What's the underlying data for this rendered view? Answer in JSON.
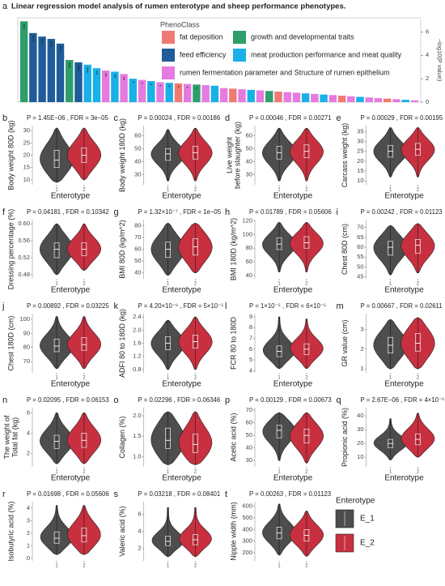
{
  "panel_label": "a",
  "figure_title": "Linear regression model analysis of rumen enterotype and sheep performance phenotypes.",
  "legend_title": "Enterotype",
  "chart_data": [
    {
      "type": "bar",
      "y_label": "−log10(P value)",
      "ylim": [
        0,
        7.2
      ],
      "yticks": [
        0,
        2,
        4,
        6
      ],
      "values": [
        6.9,
        5.9,
        5.6,
        5.4,
        5.0,
        3.6,
        3.4,
        3.2,
        2.9,
        2.7,
        2.6,
        2.4,
        2.0,
        1.9,
        1.8,
        1.7,
        1.65,
        1.6,
        1.55,
        1.5,
        1.45,
        1.4,
        1.2,
        1.15,
        1.1,
        1.05,
        1.0,
        0.95,
        0.9,
        0.85,
        0.8,
        0.75,
        0.7,
        0.65,
        0.6,
        0.55,
        0.5,
        0.45,
        0.4,
        0.35,
        0.3,
        0.25,
        0.2,
        0.15
      ],
      "colors": [
        "#2e9e6b",
        "#1f5c99",
        "#1f5c99",
        "#1f5c99",
        "#1f5c99",
        "#2e9e6b",
        "#1f5c99",
        "#1ab0e8",
        "#1ab0e8",
        "#e57be0",
        "#1ab0e8",
        "#e57be0",
        "#1ab0e8",
        "#e57be0",
        "#1ab0e8",
        "#e57be0",
        "#1ab0e8",
        "#f07a73",
        "#e57be0",
        "#2e9e6b",
        "#e57be0",
        "#1ab0e8",
        "#e57be0",
        "#f07a73",
        "#e57be0",
        "#1ab0e8",
        "#e57be0",
        "#2e9e6b",
        "#f07a73",
        "#e57be0",
        "#e57be0",
        "#1ab0e8",
        "#e57be0",
        "#1ab0e8",
        "#e57be0",
        "#f07a73",
        "#e57be0",
        "#1ab0e8",
        "#e57be0",
        "#e57be0",
        "#f07a73",
        "#e57be0",
        "#1ab0e8",
        "#e57be0"
      ],
      "annotations": [
        "***",
        "***",
        "***",
        "***",
        "***",
        "***",
        "***",
        "***",
        "**",
        "**",
        "**",
        "**",
        "*",
        "*",
        "*",
        "*",
        "*",
        "*",
        "*",
        "*",
        null,
        null,
        null,
        null,
        null,
        null,
        null,
        null,
        null,
        null,
        null,
        null,
        null,
        null,
        null,
        null,
        null,
        null,
        null,
        null,
        null,
        null,
        null,
        null
      ],
      "legend": {
        "title": "PhenoClass",
        "items": [
          {
            "name": "fat deposition",
            "color": "#f07a73"
          },
          {
            "name": "growth and developmental traits",
            "color": "#2e9e6b"
          },
          {
            "name": "feed efficiency",
            "color": "#1f5c99"
          },
          {
            "name": "meat production performance and meat quality",
            "color": "#1ab0e8"
          },
          {
            "name": "rumen fermentation parameter and Structure of rumen epithelium",
            "color": "#e57be0"
          }
        ]
      }
    },
    {
      "type": "violin",
      "label": "b",
      "stats": "P = 1.45E−06 , FDR = 3e−05",
      "y_label": "Body weight 80D (kg)",
      "x_label": "Enterotype",
      "categories": [
        "1",
        "2"
      ],
      "ylim": [
        8,
        32
      ],
      "yticks": [
        10,
        15,
        20,
        25,
        30
      ],
      "series": [
        {
          "name": "E_1",
          "color": "#4d4d4d",
          "values": [
            9,
            15,
            18,
            22,
            31
          ]
        },
        {
          "name": "E_2",
          "color": "#c8303f",
          "values": [
            10,
            17,
            20,
            23,
            31
          ]
        }
      ]
    },
    {
      "type": "violin",
      "label": "c",
      "stats": "P = 0.00024 , FDR = 0.00186",
      "y_label": "Body weight 180D (kg)",
      "x_label": "Enterotype",
      "categories": [
        "1",
        "2"
      ],
      "ylim": [
        22,
        68
      ],
      "yticks": [
        30,
        40,
        50,
        60
      ],
      "series": [
        {
          "name": "E_1",
          "color": "#4d4d4d",
          "values": [
            25,
            41,
            46,
            50,
            65
          ]
        },
        {
          "name": "E_2",
          "color": "#c8303f",
          "values": [
            25,
            42,
            47,
            52,
            66
          ]
        }
      ]
    },
    {
      "type": "violin",
      "label": "d",
      "stats": "P = 0.00046 , FDR = 0.00271",
      "y_label": [
        "Live weight",
        "before slaughter (kg)"
      ],
      "x_label": "Enterotype",
      "categories": [
        "1",
        "2"
      ],
      "ylim": [
        22,
        68
      ],
      "yticks": [
        30,
        40,
        50,
        60
      ],
      "series": [
        {
          "name": "E_1",
          "color": "#4d4d4d",
          "values": [
            25,
            42,
            47,
            52,
            66
          ]
        },
        {
          "name": "E_2",
          "color": "#c8303f",
          "values": [
            25,
            43,
            48,
            53,
            66
          ]
        }
      ]
    },
    {
      "type": "violin",
      "label": "e",
      "stats": "P = 0.00029 , FDR = 0.00195",
      "y_label": "Carcass weight (kg)",
      "x_label": "Enterotype",
      "categories": [
        "1",
        "2"
      ],
      "ylim": [
        8,
        38
      ],
      "yticks": [
        10,
        15,
        20,
        25,
        30,
        35
      ],
      "series": [
        {
          "name": "E_1",
          "color": "#4d4d4d",
          "values": [
            12,
            22,
            25,
            28,
            37
          ]
        },
        {
          "name": "E_2",
          "color": "#c8303f",
          "values": [
            12,
            23,
            26,
            29,
            37
          ]
        }
      ]
    },
    {
      "type": "violin",
      "label": "f",
      "stats": "P = 0.04181 , FDR = 0.10342",
      "y_label": "Dressing percentage (%)",
      "x_label": "Enterotype",
      "categories": [
        "1",
        "2"
      ],
      "ylim": [
        0.47,
        0.61
      ],
      "yticks": [
        0.48,
        0.52,
        0.56,
        {
          "value": 0.6,
          "label": "0.60"
        }
      ],
      "series": [
        {
          "name": "E_1",
          "color": "#4d4d4d",
          "values": [
            0.48,
            0.52,
            0.54,
            0.555,
            0.6
          ]
        },
        {
          "name": "E_2",
          "color": "#c8303f",
          "values": [
            0.49,
            0.525,
            0.54,
            0.555,
            0.6
          ]
        }
      ]
    },
    {
      "type": "violin",
      "label": "g",
      "stats": "P = 1.32×10⁻⁷ , FDR = 1e−05",
      "y_label": "BMI 80D (kg/m^2)",
      "x_label": "Enterotype",
      "categories": [
        "1",
        "2"
      ],
      "ylim": [
        35,
        85
      ],
      "yticks": [
        40,
        50,
        60,
        70,
        80
      ],
      "series": [
        {
          "name": "E_1",
          "color": "#4d4d4d",
          "values": [
            38,
            53,
            60,
            66,
            82
          ]
        },
        {
          "name": "E_2",
          "color": "#c8303f",
          "values": [
            40,
            55,
            62,
            69,
            82
          ]
        }
      ]
    },
    {
      "type": "violin",
      "label": "h",
      "stats": "P = 0.01789 , FDR = 0.05606",
      "y_label": "BMI 180D (kg/m^2)",
      "x_label": "Enterotype",
      "categories": [
        "1",
        "2"
      ],
      "ylim": [
        35,
        122
      ],
      "yticks": [
        40,
        60,
        80,
        100,
        120
      ],
      "series": [
        {
          "name": "E_1",
          "color": "#4d4d4d",
          "values": [
            45,
            78,
            86,
            95,
            118
          ]
        },
        {
          "name": "E_2",
          "color": "#c8303f",
          "values": [
            45,
            80,
            88,
            97,
            118
          ]
        }
      ]
    },
    {
      "type": "violin",
      "label": "i",
      "stats": "P = 0.00242 , FDR = 0.01123",
      "y_label": "Chest 80D (cm)",
      "x_label": "Enterotype",
      "categories": [
        "1",
        "2"
      ],
      "ylim": [
        44,
        74
      ],
      "yticks": [
        45,
        50,
        55,
        60,
        65,
        70
      ],
      "series": [
        {
          "name": "E_1",
          "color": "#4d4d4d",
          "values": [
            46,
            56,
            60,
            63,
            71
          ]
        },
        {
          "name": "E_2",
          "color": "#c8303f",
          "values": [
            47,
            57,
            61,
            64,
            72
          ]
        }
      ]
    },
    {
      "type": "violin",
      "label": "j",
      "stats": "P = 0.00892 , FDR = 0.03225",
      "y_label": "Chest 180D (cm)",
      "x_label": "Enterotype",
      "categories": [
        "1",
        "2"
      ],
      "ylim": [
        62,
        104
      ],
      "yticks": [
        70,
        80,
        90,
        100
      ],
      "series": [
        {
          "name": "E_1",
          "color": "#4d4d4d",
          "values": [
            65,
            77,
            81,
            86,
            102
          ]
        },
        {
          "name": "E_2",
          "color": "#c8303f",
          "values": [
            65,
            78,
            82,
            87,
            102
          ]
        }
      ]
    },
    {
      "type": "violin",
      "label": "k",
      "stats": "P = 4.20×10⁻⁶ , FDR = 5×10⁻⁵",
      "y_label": "ADFI 80 to 180D (kg)",
      "x_label": "Enterotype",
      "categories": [
        "1",
        "2"
      ],
      "ylim": [
        0.7,
        2.5
      ],
      "yticks": [
        0.8,
        1.2,
        1.6,
        {
          "value": 2,
          "label": "2.0"
        },
        2.4
      ],
      "series": [
        {
          "name": "E_1",
          "color": "#4d4d4d",
          "values": [
            0.8,
            1.4,
            1.6,
            1.8,
            2.3
          ]
        },
        {
          "name": "E_2",
          "color": "#c8303f",
          "values": [
            0.8,
            1.45,
            1.65,
            1.85,
            2.4
          ]
        }
      ]
    },
    {
      "type": "violin",
      "label": "l",
      "stats": "P = 1×10⁻⁵ , FDR = 6×10⁻⁵",
      "y_label": "FCR 80 to 180D",
      "x_label": "Enterotype",
      "categories": [
        "1",
        "2"
      ],
      "ylim": [
        3.8,
        9.3
      ],
      "yticks": [
        4,
        5,
        6,
        7,
        8,
        9
      ],
      "series": [
        {
          "name": "E_1",
          "color": "#4d4d4d",
          "values": [
            4.2,
            5.3,
            5.8,
            6.3,
            9
          ]
        },
        {
          "name": "E_2",
          "color": "#c8303f",
          "values": [
            4.2,
            5.5,
            6,
            6.5,
            8.8
          ]
        }
      ]
    },
    {
      "type": "violin",
      "label": "m",
      "stats": "P = 0.00667 , FDR = 0.02611",
      "y_label": "GR value (cm)",
      "x_label": "Enterotype",
      "categories": [
        "1",
        "2"
      ],
      "ylim": [
        0.8,
        3.8
      ],
      "yticks": [
        1,
        2,
        3
      ],
      "series": [
        {
          "name": "E_1",
          "color": "#4d4d4d",
          "values": [
            1,
            1.8,
            2.2,
            2.6,
            3.5
          ]
        },
        {
          "name": "E_2",
          "color": "#c8303f",
          "values": [
            1,
            1.9,
            2.3,
            2.8,
            3.6
          ]
        }
      ]
    },
    {
      "type": "violin",
      "label": "n",
      "stats": "P = 0.02095 , FDR = 0.06153",
      "y_label": [
        "The weight of",
        "Total fat (kg)"
      ],
      "x_label": "Enterotype",
      "categories": [
        "1",
        "2"
      ],
      "ylim": [
        0.7,
        6.5
      ],
      "yticks": [
        2,
        4,
        6
      ],
      "series": [
        {
          "name": "E_1",
          "color": "#4d4d4d",
          "values": [
            1,
            2.5,
            3.2,
            3.8,
            6
          ]
        },
        {
          "name": "E_2",
          "color": "#c8303f",
          "values": [
            1,
            2.6,
            3.3,
            4,
            6
          ]
        }
      ]
    },
    {
      "type": "violin",
      "label": "o",
      "stats": "P = 0.02296 , FDR = 0.06346",
      "y_label": "Collagen (%)",
      "x_label": "Enterotype",
      "categories": [
        "1",
        "2"
      ],
      "ylim": [
        0.75,
        2.2
      ],
      "yticks": [
        {
          "value": 1,
          "label": "1.0"
        },
        1.5,
        {
          "value": 2,
          "label": "2.0"
        }
      ],
      "series": [
        {
          "name": "E_1",
          "color": "#4d4d4d",
          "values": [
            0.8,
            1.2,
            1.4,
            1.7,
            2.1
          ]
        },
        {
          "name": "E_2",
          "color": "#c8303f",
          "values": [
            0.8,
            1.1,
            1.3,
            1.55,
            2.1
          ]
        }
      ]
    },
    {
      "type": "violin",
      "label": "p",
      "stats": "P = 0.00129 , FDR = 0.00673",
      "y_label": "Acetic acid (%)",
      "x_label": "Enterotype",
      "categories": [
        "1",
        "2"
      ],
      "ylim": [
        25,
        72
      ],
      "yticks": [
        30,
        40,
        50,
        60,
        70
      ],
      "series": [
        {
          "name": "E_1",
          "color": "#4d4d4d",
          "values": [
            30,
            48,
            54,
            58,
            68
          ]
        },
        {
          "name": "E_2",
          "color": "#c8303f",
          "values": [
            28,
            44,
            50,
            55,
            68
          ]
        }
      ]
    },
    {
      "type": "violin",
      "label": "q",
      "stats": "P = 2.67E−06 , FDR = 4×10⁻⁵",
      "y_label": "Propionic acid (%)",
      "x_label": "Enterotype",
      "categories": [
        "1",
        "2"
      ],
      "ylim": [
        3,
        46
      ],
      "yticks": [
        10,
        20,
        30,
        40
      ],
      "series": [
        {
          "name": "E_1",
          "color": "#4d4d4d",
          "values": [
            8,
            17,
            20,
            23,
            38
          ]
        },
        {
          "name": "E_2",
          "color": "#c8303f",
          "values": [
            10,
            19,
            23,
            27,
            42
          ]
        }
      ]
    },
    {
      "type": "violin",
      "label": "r",
      "stats": "P = 0.01698 , FDR = 0.05606",
      "y_label": "Isobutyric acid (%)",
      "categories": [
        "1",
        "2"
      ],
      "ylim": [
        -0.2,
        4.5
      ],
      "yticks": [
        0,
        1,
        2,
        3,
        4
      ],
      "series": [
        {
          "name": "E_1",
          "color": "#4d4d4d",
          "values": [
            0.3,
            1.2,
            1.6,
            2.1,
            4.2
          ]
        },
        {
          "name": "E_2",
          "color": "#c8303f",
          "values": [
            0.3,
            1.3,
            1.8,
            2.4,
            4.2
          ]
        }
      ]
    },
    {
      "type": "violin",
      "label": "s",
      "stats": "P = 0.03218 , FDR = 0.08401",
      "y_label": "Valeric acid (%)",
      "categories": [
        "1",
        "2"
      ],
      "ylim": [
        0.5,
        7.5
      ],
      "yticks": [
        2,
        4,
        6
      ],
      "series": [
        {
          "name": "E_1",
          "color": "#4d4d4d",
          "values": [
            1,
            2.3,
            2.8,
            3.4,
            6.8
          ]
        },
        {
          "name": "E_2",
          "color": "#c8303f",
          "values": [
            1,
            2.4,
            3,
            3.6,
            6.8
          ]
        }
      ]
    },
    {
      "type": "violin",
      "label": "t",
      "stats": "P = 0.00263 , FDR = 0.01123",
      "y_label": "Nipple width (mm)",
      "categories": [
        "1",
        "2"
      ],
      "ylim": [
        130,
        640
      ],
      "yticks": [
        200,
        300,
        400,
        500,
        600
      ],
      "series": [
        {
          "name": "E_1",
          "color": "#4d4d4d",
          "values": [
            180,
            320,
            370,
            420,
            620
          ]
        },
        {
          "name": "E_2",
          "color": "#c8303f",
          "values": [
            170,
            300,
            350,
            400,
            560
          ]
        }
      ]
    }
  ]
}
